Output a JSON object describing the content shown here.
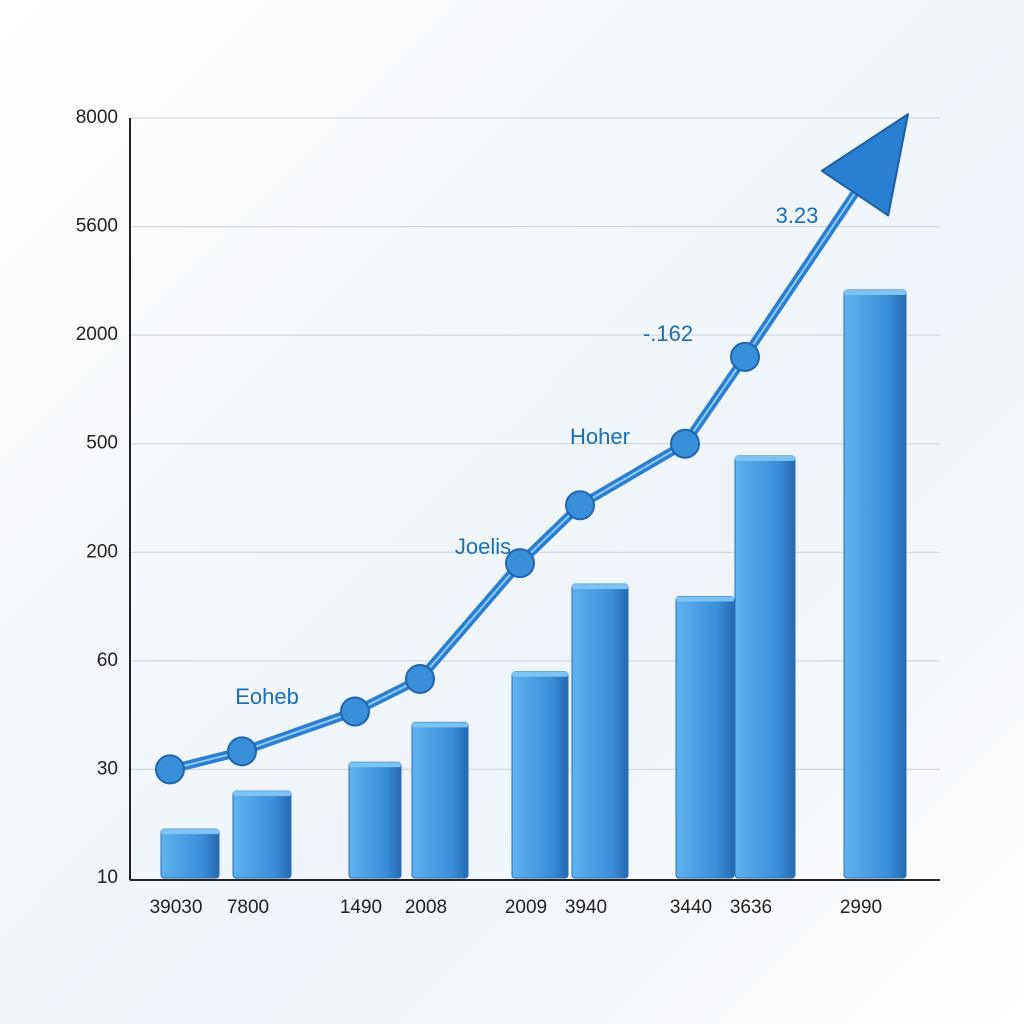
{
  "chart_data": {
    "type": "bar",
    "categories": [
      "39030",
      "7800",
      "1490",
      "2008",
      "2009",
      "3940",
      "3440",
      "3636",
      "2990"
    ],
    "values": [
      19,
      26,
      32,
      43,
      57,
      159,
      143,
      466,
      3497
    ],
    "color": "#3a8fd9",
    "line": {
      "color": "#2a7fd0",
      "values": [
        30,
        35,
        46,
        55,
        186,
        330,
        500,
        1700,
        6340
      ]
    },
    "annotations": [
      "3.23",
      "-.162",
      "Hoher",
      "Joelis",
      "Eoheb"
    ],
    "ylim": [
      10,
      8000
    ],
    "yticks": [
      10,
      30,
      60,
      200,
      500,
      2000,
      5600,
      8000
    ],
    "grid": true
  }
}
